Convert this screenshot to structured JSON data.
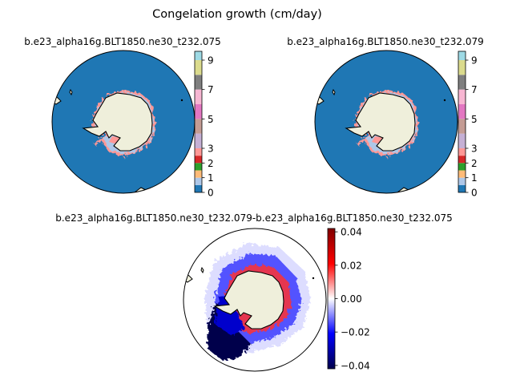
{
  "figure": {
    "suptitle": "Congelation growth (cm/day)"
  },
  "chart_data": [
    {
      "type": "heatmap",
      "projection": "south-polar-stereographic",
      "title": "b.e23_alpha16g.BLT1850.ne30_t232.075",
      "colorbar": {
        "ticks": [
          0,
          1,
          2,
          3,
          5,
          7,
          9
        ],
        "tick_labels": [
          "0",
          "1",
          "2",
          "3",
          "5",
          "7",
          "9"
        ],
        "colormap": "tab20",
        "bins": [
          {
            "from": 0,
            "to": 0.5,
            "color": "#1f77b4"
          },
          {
            "from": 0.5,
            "to": 1,
            "color": "#aec7e8"
          },
          {
            "from": 1,
            "to": 1.5,
            "color": "#ffbb78"
          },
          {
            "from": 1.5,
            "to": 2,
            "color": "#2ca02c"
          },
          {
            "from": 2,
            "to": 2.5,
            "color": "#d62728"
          },
          {
            "from": 2.5,
            "to": 3,
            "color": "#ff9896"
          },
          {
            "from": 3,
            "to": 4,
            "color": "#c5b0d5"
          },
          {
            "from": 4,
            "to": 5,
            "color": "#c49c94"
          },
          {
            "from": 5,
            "to": 6,
            "color": "#e377c2"
          },
          {
            "from": 6,
            "to": 7,
            "color": "#f7b6d2"
          },
          {
            "from": 7,
            "to": 8,
            "color": "#7f7f7f"
          },
          {
            "from": 8,
            "to": 9,
            "color": "#dbdb8d"
          },
          {
            "from": 9,
            "to": 9.6,
            "color": "#9edae5"
          }
        ],
        "range": [
          0,
          9.6
        ]
      },
      "field": "mostly 0 over open ocean; thin band of 0.5-3 along the Antarctic coast",
      "land_color": "#efefdb",
      "ocean_value": 0
    },
    {
      "type": "heatmap",
      "projection": "south-polar-stereographic",
      "title": "b.e23_alpha16g.BLT1850.ne30_t232.079",
      "colorbar": {
        "ticks": [
          0,
          1,
          2,
          3,
          5,
          7,
          9
        ],
        "tick_labels": [
          "0",
          "1",
          "2",
          "3",
          "5",
          "7",
          "9"
        ],
        "colormap": "tab20",
        "range": [
          0,
          9.6
        ]
      },
      "field": "mostly 0 over open ocean; thin band of 0.5-3 along the Antarctic coast",
      "land_color": "#efefdb",
      "ocean_value": 0
    },
    {
      "type": "heatmap",
      "projection": "south-polar-stereographic",
      "title": "b.e23_alpha16g.BLT1850.ne30_t232.079-b.e23_alpha16g.BLT1850.ne30_t232.075",
      "colorbar": {
        "ticks": [
          0.04,
          0.02,
          0.0,
          -0.02,
          -0.04
        ],
        "tick_labels": [
          "0.04",
          "0.02",
          "0.00",
          "−0.02",
          "−0.04"
        ],
        "colormap": "seismic",
        "range": [
          -0.042,
          0.042
        ]
      },
      "field": "difference: positive (red) near coast in Weddell/Ross sectors, negative (blue) ring in outer sea-ice zone, strongest negative in Weddell sector",
      "land_color": "#efefdb"
    }
  ]
}
